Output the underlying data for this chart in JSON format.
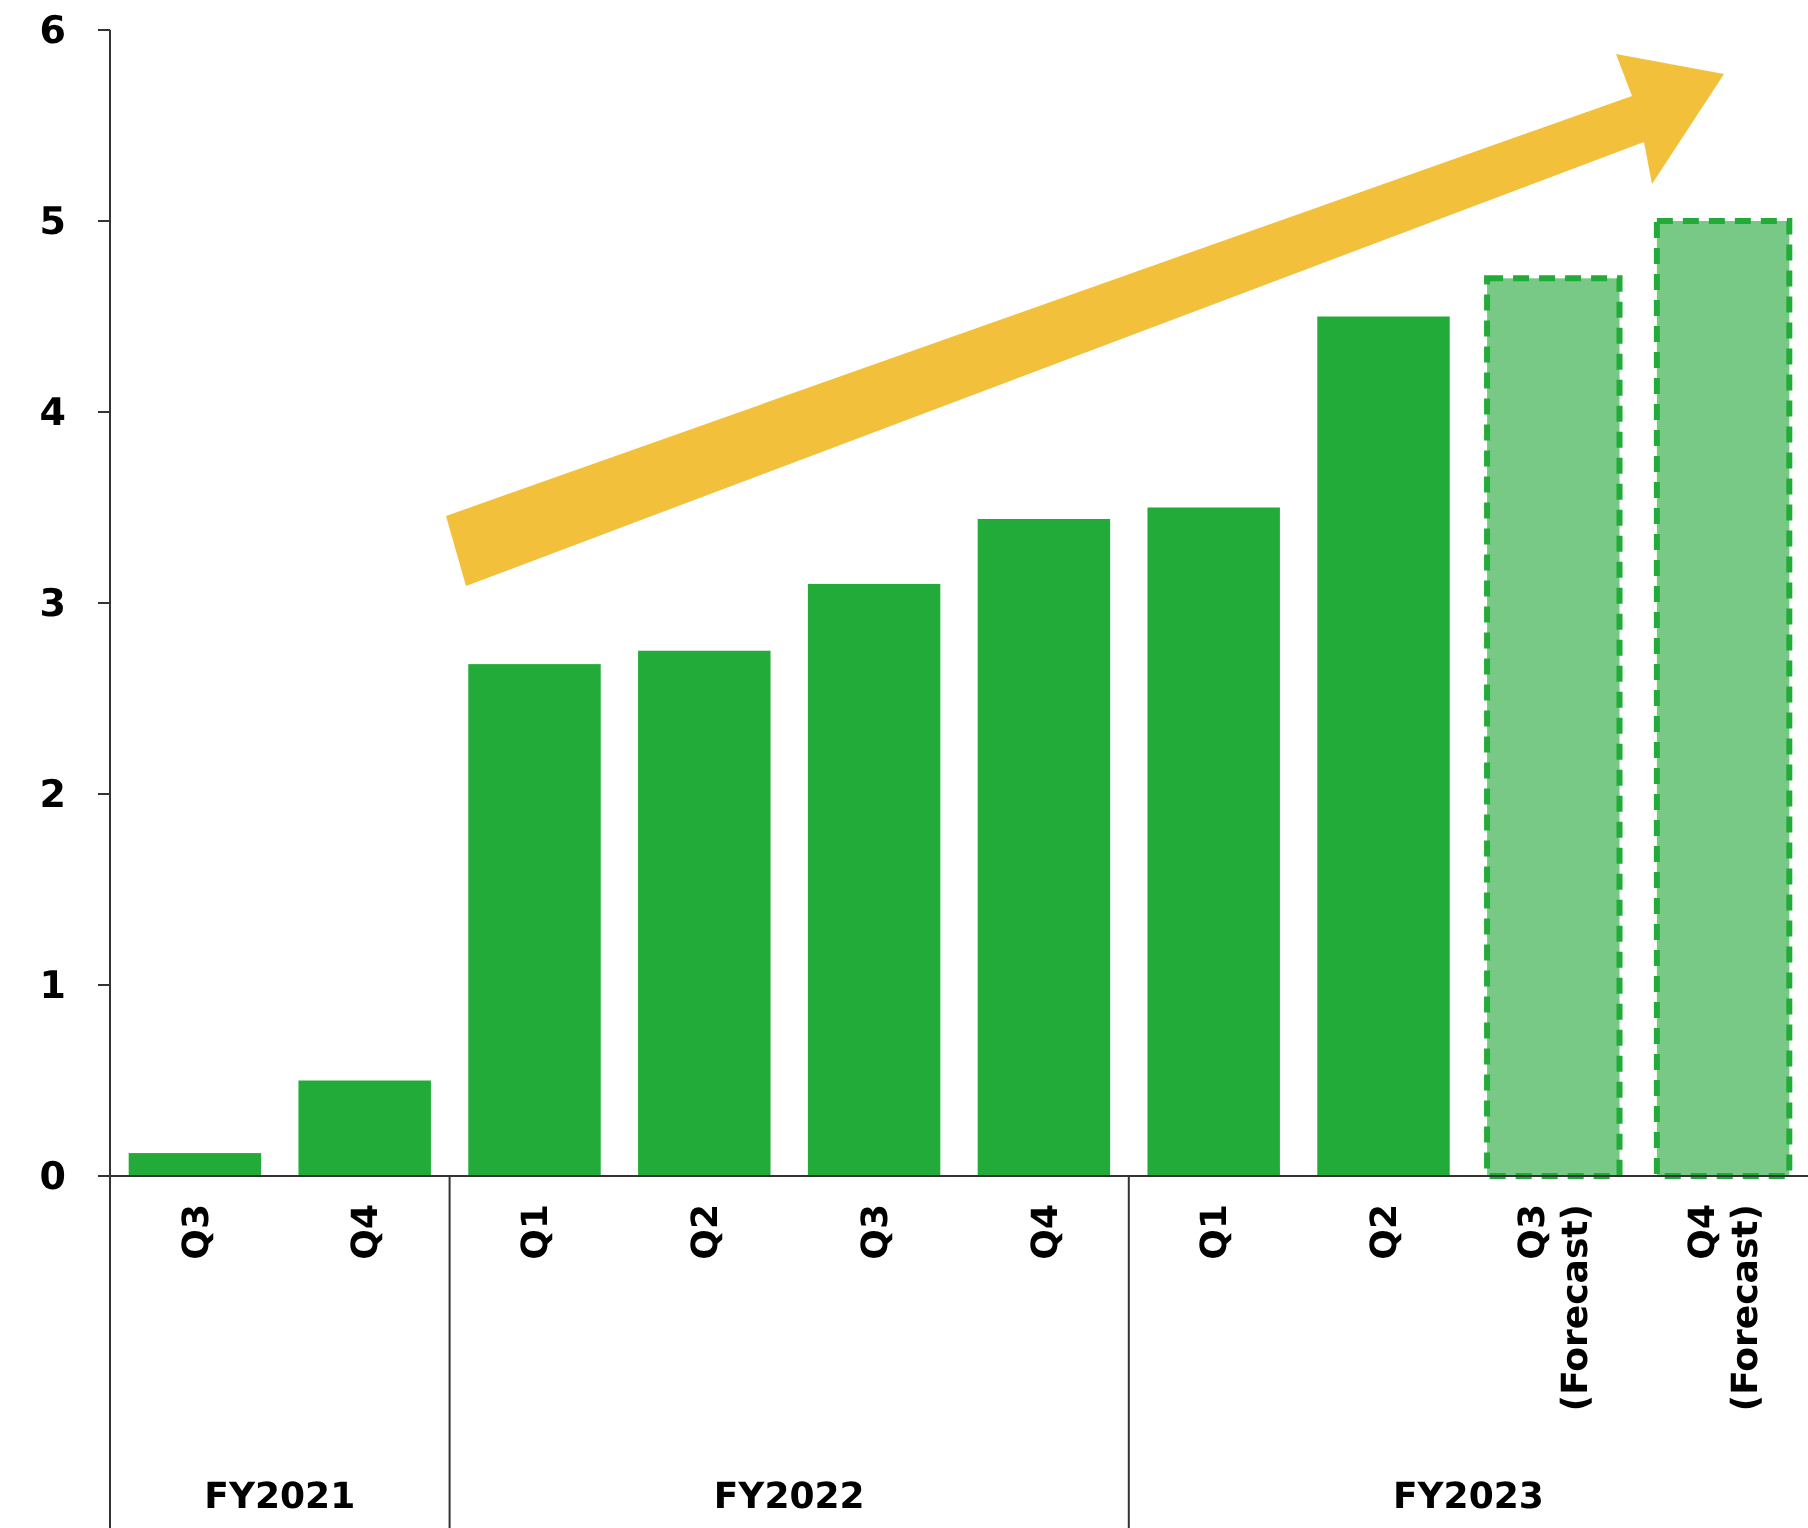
{
  "chart_data": {
    "type": "bar",
    "categories": [
      "Q3",
      "Q4",
      "Q1",
      "Q2",
      "Q3",
      "Q4",
      "Q1",
      "Q2",
      "Q3 (Forecast)",
      "Q4 (Forecast)"
    ],
    "series": [
      {
        "color": "#22ab38",
        "values": [
          0.12,
          0.5,
          2.68,
          2.75,
          3.1,
          3.44,
          3.5,
          4.5,
          null,
          null
        ]
      },
      {
        "color": "#78c986",
        "line_style": "dashed",
        "values": [
          null,
          null,
          null,
          null,
          null,
          null,
          null,
          null,
          4.7,
          5.0
        ]
      }
    ],
    "ylim": [
      0,
      6
    ],
    "yticks": [
      0,
      1,
      2,
      3,
      4,
      5,
      6
    ],
    "grid": false,
    "annotations": [
      "FY2021",
      "FY2022",
      "FY2023"
    ]
  }
}
